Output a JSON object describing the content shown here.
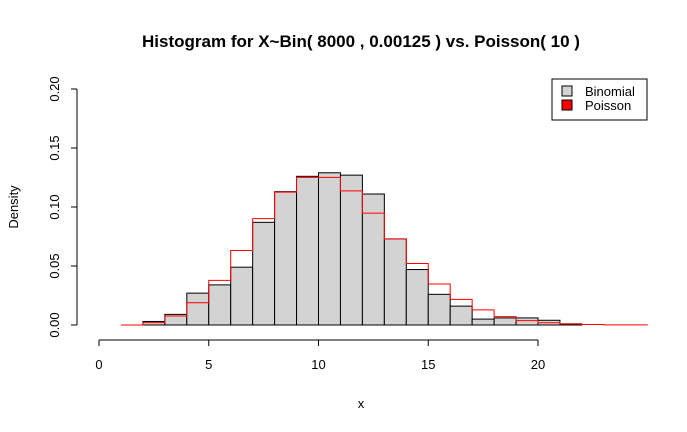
{
  "chart_data": {
    "type": "bar",
    "title": "Histogram for X~Bin( 8000 , 0.00125 ) vs. Poisson( 10 )",
    "xlabel": "x",
    "ylabel": "Density",
    "xlim": [
      0,
      25
    ],
    "ylim": [
      0,
      0.2
    ],
    "x_ticks": [
      "0",
      "5",
      "10",
      "15",
      "20"
    ],
    "y_ticks": [
      "0.00",
      "0.05",
      "0.10",
      "0.15",
      "0.20"
    ],
    "legend": {
      "position": "top-right",
      "entries": [
        {
          "label": "Binomial",
          "color": "#d3d3d3"
        },
        {
          "label": "Poisson",
          "color": "#ff0000"
        }
      ]
    },
    "series": [
      {
        "name": "Binomial",
        "style": "histogram",
        "fill": "#d3d3d3",
        "border": "#000000",
        "bin_edges": [
          0,
          1,
          2,
          3,
          4,
          5,
          6,
          7,
          8,
          9,
          10,
          11,
          12,
          13,
          14,
          15,
          16,
          17,
          18,
          19,
          20,
          21,
          22
        ],
        "values": [
          0,
          0,
          0.003,
          0.009,
          0.027,
          0.034,
          0.049,
          0.087,
          0.113,
          0.126,
          0.129,
          0.127,
          0.111,
          0.073,
          0.047,
          0.026,
          0.016,
          0.005,
          0.006,
          0.006,
          0.004,
          0.001
        ]
      },
      {
        "name": "Poisson",
        "style": "step",
        "color": "#ff0000",
        "bin_edges": [
          1,
          2,
          3,
          4,
          5,
          6,
          7,
          8,
          9,
          10,
          11,
          12,
          13,
          14,
          15,
          16,
          17,
          18,
          19,
          20,
          21,
          22,
          23,
          25
        ],
        "values": [
          0.0,
          0.002,
          0.0076,
          0.0189,
          0.0378,
          0.0631,
          0.0901,
          0.1126,
          0.1251,
          0.1251,
          0.1137,
          0.0948,
          0.0729,
          0.0521,
          0.0347,
          0.0217,
          0.0128,
          0.0071,
          0.0037,
          0.0019,
          0.0009,
          0.0004,
          0.0001
        ]
      }
    ]
  }
}
